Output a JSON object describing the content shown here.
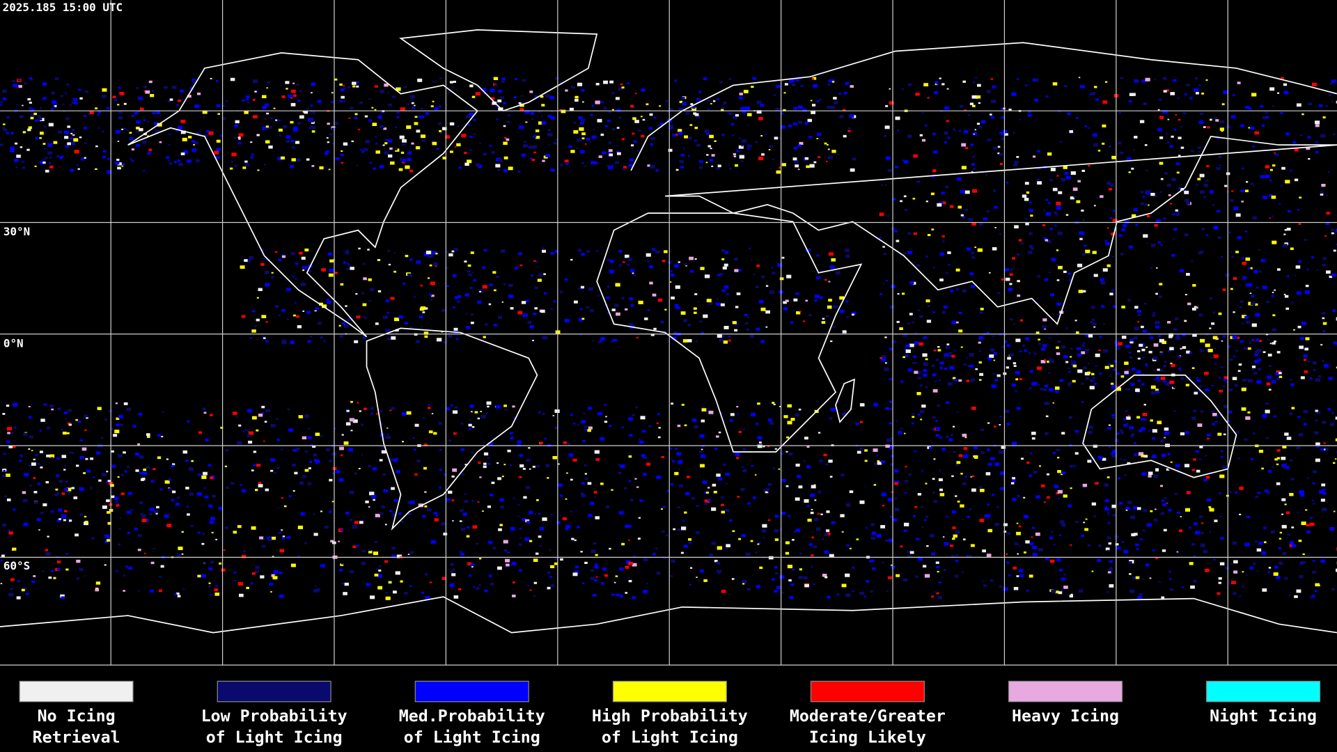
{
  "timestamp": "2025.185 15:00 UTC",
  "latitude_labels": [
    "30°N",
    "0°N",
    "60°S"
  ],
  "legend": [
    {
      "lines": [
        "No Icing",
        "Retrieval"
      ],
      "color": "#f0f0f0"
    },
    {
      "lines": [
        "Low Probability",
        "of Light Icing"
      ],
      "color": "#0a0a6e"
    },
    {
      "lines": [
        "Med.Probability",
        "of Light Icing"
      ],
      "color": "#0000ff"
    },
    {
      "lines": [
        "High Probability",
        "of Light Icing"
      ],
      "color": "#ffff00"
    },
    {
      "lines": [
        "Moderate/Greater",
        "Icing Likely"
      ],
      "color": "#ff0000"
    },
    {
      "lines": [
        "Heavy Icing"
      ],
      "color": "#e8a8e0"
    },
    {
      "lines": [
        "Night Icing"
      ],
      "color": "#00ffff"
    }
  ]
}
